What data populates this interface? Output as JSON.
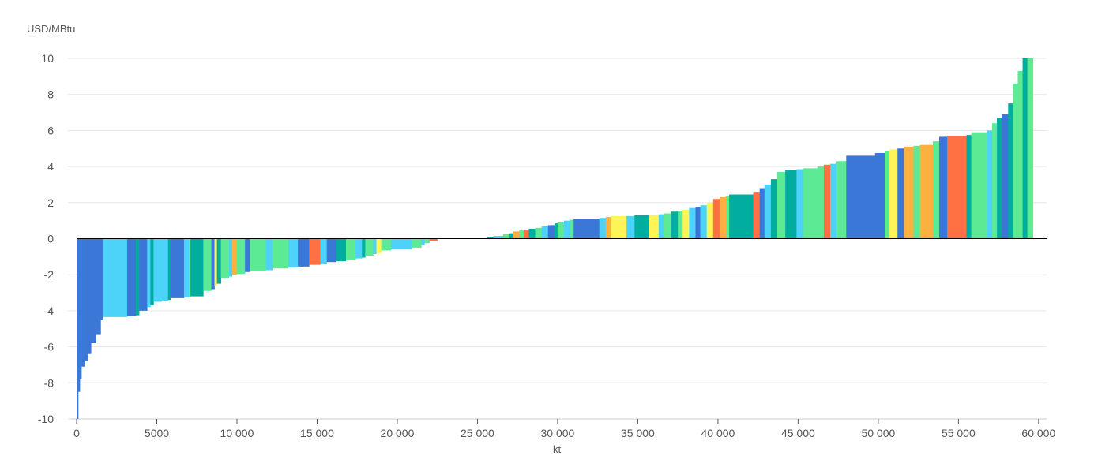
{
  "chart_data": {
    "type": "bar",
    "subtype": "cost-curve",
    "ylabel": "USD/MBtu",
    "xlabel": "kt",
    "xlim": [
      0,
      60500
    ],
    "ylim": [
      -10,
      10
    ],
    "x_ticks": [
      0,
      5000,
      10000,
      15000,
      20000,
      25000,
      30000,
      35000,
      40000,
      45000,
      50000,
      55000,
      60000
    ],
    "x_tick_labels": [
      "0",
      "5000",
      "10 000",
      "15 000",
      "20 000",
      "25 000",
      "30 000",
      "35 000",
      "40 000",
      "45 000",
      "50 000",
      "55 000",
      "60 000"
    ],
    "y_ticks": [
      -10,
      -8,
      -6,
      -4,
      -2,
      0,
      2,
      4,
      6,
      8,
      10
    ],
    "y_tick_labels": [
      "-10",
      "-8",
      "-6",
      "-4",
      "-2",
      "0",
      "2",
      "4",
      "6",
      "8",
      "10"
    ],
    "grid": "horizontal",
    "colors": {
      "blue": "#3b77d6",
      "cyan": "#4dd2f9",
      "teal": "#00ad9f",
      "green": "#5ceb94",
      "yellow": "#fdf557",
      "orange": "#fbb040",
      "red": "#ff7043",
      "gridline": "#e6e6e6",
      "axis": "#000000"
    },
    "bars": [
      {
        "x0": 0,
        "x1": 100,
        "y": -10,
        "color": "blue"
      },
      {
        "x0": 100,
        "x1": 200,
        "y": -8.5,
        "color": "blue"
      },
      {
        "x0": 200,
        "x1": 300,
        "y": -7.8,
        "color": "blue"
      },
      {
        "x0": 300,
        "x1": 500,
        "y": -7.1,
        "color": "blue"
      },
      {
        "x0": 500,
        "x1": 700,
        "y": -6.8,
        "color": "blue"
      },
      {
        "x0": 700,
        "x1": 900,
        "y": -6.4,
        "color": "blue"
      },
      {
        "x0": 900,
        "x1": 1200,
        "y": -5.8,
        "color": "blue"
      },
      {
        "x0": 1200,
        "x1": 1500,
        "y": -5.3,
        "color": "blue"
      },
      {
        "x0": 1500,
        "x1": 1650,
        "y": -4.5,
        "color": "blue"
      },
      {
        "x0": 1650,
        "x1": 3150,
        "y": -4.35,
        "color": "cyan"
      },
      {
        "x0": 3150,
        "x1": 3700,
        "y": -4.3,
        "color": "blue"
      },
      {
        "x0": 3700,
        "x1": 3900,
        "y": -4.25,
        "color": "teal"
      },
      {
        "x0": 3900,
        "x1": 4400,
        "y": -4.0,
        "color": "blue"
      },
      {
        "x0": 4400,
        "x1": 4600,
        "y": -3.8,
        "color": "cyan"
      },
      {
        "x0": 4600,
        "x1": 4800,
        "y": -3.7,
        "color": "teal"
      },
      {
        "x0": 4800,
        "x1": 5300,
        "y": -3.5,
        "color": "cyan"
      },
      {
        "x0": 5300,
        "x1": 5700,
        "y": -3.45,
        "color": "cyan"
      },
      {
        "x0": 5700,
        "x1": 5850,
        "y": -3.4,
        "color": "teal"
      },
      {
        "x0": 5850,
        "x1": 6700,
        "y": -3.3,
        "color": "blue"
      },
      {
        "x0": 6700,
        "x1": 7000,
        "y": -3.25,
        "color": "cyan"
      },
      {
        "x0": 7000,
        "x1": 7100,
        "y": -3.25,
        "color": "green"
      },
      {
        "x0": 7100,
        "x1": 7900,
        "y": -3.2,
        "color": "teal"
      },
      {
        "x0": 7900,
        "x1": 8400,
        "y": -2.9,
        "color": "green"
      },
      {
        "x0": 8400,
        "x1": 8600,
        "y": -2.8,
        "color": "blue"
      },
      {
        "x0": 8600,
        "x1": 8750,
        "y": -2.6,
        "color": "yellow"
      },
      {
        "x0": 8750,
        "x1": 9000,
        "y": -2.5,
        "color": "teal"
      },
      {
        "x0": 9000,
        "x1": 9500,
        "y": -2.2,
        "color": "green"
      },
      {
        "x0": 9500,
        "x1": 9700,
        "y": -2.1,
        "color": "cyan"
      },
      {
        "x0": 9700,
        "x1": 10000,
        "y": -2.0,
        "color": "orange"
      },
      {
        "x0": 10000,
        "x1": 10500,
        "y": -1.95,
        "color": "green"
      },
      {
        "x0": 10500,
        "x1": 10800,
        "y": -1.85,
        "color": "blue"
      },
      {
        "x0": 10800,
        "x1": 11800,
        "y": -1.8,
        "color": "green"
      },
      {
        "x0": 11800,
        "x1": 12200,
        "y": -1.75,
        "color": "cyan"
      },
      {
        "x0": 12200,
        "x1": 13200,
        "y": -1.65,
        "color": "green"
      },
      {
        "x0": 13200,
        "x1": 13800,
        "y": -1.6,
        "color": "cyan"
      },
      {
        "x0": 13800,
        "x1": 14500,
        "y": -1.55,
        "color": "blue"
      },
      {
        "x0": 14500,
        "x1": 15200,
        "y": -1.45,
        "color": "red"
      },
      {
        "x0": 15200,
        "x1": 15600,
        "y": -1.4,
        "color": "cyan"
      },
      {
        "x0": 15600,
        "x1": 16200,
        "y": -1.3,
        "color": "blue"
      },
      {
        "x0": 16200,
        "x1": 16800,
        "y": -1.25,
        "color": "teal"
      },
      {
        "x0": 16800,
        "x1": 17400,
        "y": -1.2,
        "color": "green"
      },
      {
        "x0": 17400,
        "x1": 17800,
        "y": -1.1,
        "color": "cyan"
      },
      {
        "x0": 17800,
        "x1": 18000,
        "y": -1.05,
        "color": "teal"
      },
      {
        "x0": 18000,
        "x1": 18500,
        "y": -0.95,
        "color": "green"
      },
      {
        "x0": 18500,
        "x1": 18700,
        "y": -0.85,
        "color": "cyan"
      },
      {
        "x0": 18700,
        "x1": 19000,
        "y": -0.8,
        "color": "yellow"
      },
      {
        "x0": 19000,
        "x1": 19600,
        "y": -0.65,
        "color": "green"
      },
      {
        "x0": 19600,
        "x1": 20900,
        "y": -0.6,
        "color": "cyan"
      },
      {
        "x0": 20900,
        "x1": 21500,
        "y": -0.5,
        "color": "green"
      },
      {
        "x0": 21500,
        "x1": 21700,
        "y": -0.35,
        "color": "cyan"
      },
      {
        "x0": 21700,
        "x1": 22000,
        "y": -0.25,
        "color": "green"
      },
      {
        "x0": 22000,
        "x1": 22500,
        "y": -0.12,
        "color": "red"
      },
      {
        "x0": 25600,
        "x1": 26000,
        "y": 0.1,
        "color": "teal"
      },
      {
        "x0": 26000,
        "x1": 26600,
        "y": 0.15,
        "color": "cyan"
      },
      {
        "x0": 26600,
        "x1": 27000,
        "y": 0.25,
        "color": "green"
      },
      {
        "x0": 27000,
        "x1": 27200,
        "y": 0.3,
        "color": "teal"
      },
      {
        "x0": 27200,
        "x1": 27600,
        "y": 0.4,
        "color": "orange"
      },
      {
        "x0": 27600,
        "x1": 27900,
        "y": 0.45,
        "color": "green"
      },
      {
        "x0": 27900,
        "x1": 28200,
        "y": 0.5,
        "color": "red"
      },
      {
        "x0": 28200,
        "x1": 28600,
        "y": 0.55,
        "color": "teal"
      },
      {
        "x0": 28600,
        "x1": 29000,
        "y": 0.6,
        "color": "green"
      },
      {
        "x0": 29000,
        "x1": 29400,
        "y": 0.7,
        "color": "cyan"
      },
      {
        "x0": 29400,
        "x1": 29800,
        "y": 0.75,
        "color": "blue"
      },
      {
        "x0": 29800,
        "x1": 30000,
        "y": 0.85,
        "color": "teal"
      },
      {
        "x0": 30000,
        "x1": 30400,
        "y": 0.9,
        "color": "green"
      },
      {
        "x0": 30400,
        "x1": 30800,
        "y": 1.0,
        "color": "cyan"
      },
      {
        "x0": 30800,
        "x1": 31000,
        "y": 1.05,
        "color": "green"
      },
      {
        "x0": 31000,
        "x1": 32600,
        "y": 1.1,
        "color": "blue"
      },
      {
        "x0": 32600,
        "x1": 33000,
        "y": 1.15,
        "color": "cyan"
      },
      {
        "x0": 33000,
        "x1": 33300,
        "y": 1.2,
        "color": "orange"
      },
      {
        "x0": 33300,
        "x1": 34300,
        "y": 1.25,
        "color": "yellow"
      },
      {
        "x0": 34300,
        "x1": 34800,
        "y": 1.25,
        "color": "cyan"
      },
      {
        "x0": 34800,
        "x1": 35700,
        "y": 1.3,
        "color": "teal"
      },
      {
        "x0": 35700,
        "x1": 36300,
        "y": 1.3,
        "color": "yellow"
      },
      {
        "x0": 36300,
        "x1": 36600,
        "y": 1.35,
        "color": "cyan"
      },
      {
        "x0": 36600,
        "x1": 37100,
        "y": 1.4,
        "color": "green"
      },
      {
        "x0": 37100,
        "x1": 37500,
        "y": 1.5,
        "color": "teal"
      },
      {
        "x0": 37500,
        "x1": 37800,
        "y": 1.55,
        "color": "green"
      },
      {
        "x0": 37800,
        "x1": 38200,
        "y": 1.6,
        "color": "yellow"
      },
      {
        "x0": 38200,
        "x1": 38600,
        "y": 1.7,
        "color": "cyan"
      },
      {
        "x0": 38600,
        "x1": 38900,
        "y": 1.75,
        "color": "blue"
      },
      {
        "x0": 38900,
        "x1": 39300,
        "y": 1.85,
        "color": "cyan"
      },
      {
        "x0": 39300,
        "x1": 39700,
        "y": 2.0,
        "color": "yellow"
      },
      {
        "x0": 39700,
        "x1": 40100,
        "y": 2.2,
        "color": "red"
      },
      {
        "x0": 40100,
        "x1": 40500,
        "y": 2.3,
        "color": "orange"
      },
      {
        "x0": 40500,
        "x1": 40700,
        "y": 2.35,
        "color": "green"
      },
      {
        "x0": 40700,
        "x1": 42200,
        "y": 2.45,
        "color": "teal"
      },
      {
        "x0": 42200,
        "x1": 42600,
        "y": 2.6,
        "color": "red"
      },
      {
        "x0": 42600,
        "x1": 42900,
        "y": 2.8,
        "color": "blue"
      },
      {
        "x0": 42900,
        "x1": 43300,
        "y": 3.0,
        "color": "cyan"
      },
      {
        "x0": 43300,
        "x1": 43700,
        "y": 3.3,
        "color": "teal"
      },
      {
        "x0": 43700,
        "x1": 44200,
        "y": 3.7,
        "color": "green"
      },
      {
        "x0": 44200,
        "x1": 44900,
        "y": 3.8,
        "color": "teal"
      },
      {
        "x0": 44900,
        "x1": 45300,
        "y": 3.85,
        "color": "cyan"
      },
      {
        "x0": 45300,
        "x1": 46200,
        "y": 3.9,
        "color": "green"
      },
      {
        "x0": 46200,
        "x1": 46600,
        "y": 4.0,
        "color": "green"
      },
      {
        "x0": 46600,
        "x1": 47000,
        "y": 4.1,
        "color": "red"
      },
      {
        "x0": 47000,
        "x1": 47400,
        "y": 4.15,
        "color": "cyan"
      },
      {
        "x0": 47400,
        "x1": 48000,
        "y": 4.3,
        "color": "green"
      },
      {
        "x0": 48000,
        "x1": 49800,
        "y": 4.6,
        "color": "blue"
      },
      {
        "x0": 49800,
        "x1": 50400,
        "y": 4.75,
        "color": "blue"
      },
      {
        "x0": 50400,
        "x1": 50700,
        "y": 4.85,
        "color": "green"
      },
      {
        "x0": 50700,
        "x1": 51200,
        "y": 4.95,
        "color": "yellow"
      },
      {
        "x0": 51200,
        "x1": 51600,
        "y": 5.0,
        "color": "blue"
      },
      {
        "x0": 51600,
        "x1": 52200,
        "y": 5.1,
        "color": "orange"
      },
      {
        "x0": 52200,
        "x1": 52600,
        "y": 5.15,
        "color": "green"
      },
      {
        "x0": 52600,
        "x1": 53400,
        "y": 5.2,
        "color": "orange"
      },
      {
        "x0": 53400,
        "x1": 53800,
        "y": 5.4,
        "color": "green"
      },
      {
        "x0": 53800,
        "x1": 54300,
        "y": 5.65,
        "color": "blue"
      },
      {
        "x0": 54300,
        "x1": 55500,
        "y": 5.7,
        "color": "red"
      },
      {
        "x0": 55500,
        "x1": 55800,
        "y": 5.75,
        "color": "teal"
      },
      {
        "x0": 55800,
        "x1": 56800,
        "y": 5.9,
        "color": "green"
      },
      {
        "x0": 56800,
        "x1": 57100,
        "y": 6.0,
        "color": "cyan"
      },
      {
        "x0": 57100,
        "x1": 57400,
        "y": 6.4,
        "color": "green"
      },
      {
        "x0": 57400,
        "x1": 57700,
        "y": 6.7,
        "color": "teal"
      },
      {
        "x0": 57700,
        "x1": 58100,
        "y": 6.9,
        "color": "blue"
      },
      {
        "x0": 58100,
        "x1": 58400,
        "y": 7.5,
        "color": "teal"
      },
      {
        "x0": 58400,
        "x1": 58700,
        "y": 8.6,
        "color": "green"
      },
      {
        "x0": 58700,
        "x1": 59000,
        "y": 9.3,
        "color": "green"
      },
      {
        "x0": 59000,
        "x1": 59300,
        "y": 10.0,
        "color": "teal"
      },
      {
        "x0": 59300,
        "x1": 59650,
        "y": 10.0,
        "color": "green"
      }
    ]
  }
}
